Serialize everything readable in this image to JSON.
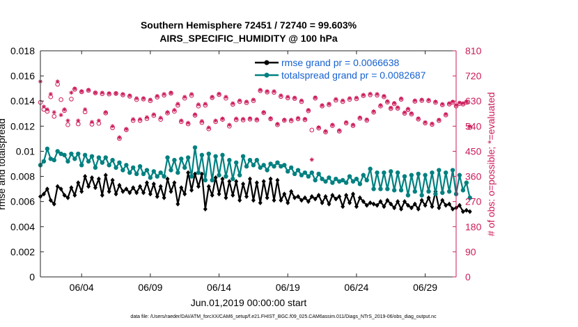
{
  "chart_data": {
    "type": "line",
    "title": "Southern Hemisphere 72451 / 72740 = 99.603%",
    "subtitle": "AIRS_SPECIFIC_HUMIDITY @ 100 hPa",
    "xlabel": "Jun.01,2019 00:00:00 start",
    "ylabel": "rmse and totalspread",
    "ylabel_right": "# of obs: o=possible; *=evaluated",
    "footnote": "data file: /Users/raeder/DAI/ATM_forcXX/CAM6_setup/f.e21.FHIST_BGC.f09_025.CAM6assim.011/Diags_NTrS_2019-06/obs_diag_output.nc",
    "xlim": [
      1,
      31.25
    ],
    "ylim": [
      0,
      0.018
    ],
    "ylim_right": [
      0,
      810
    ],
    "xtick_positions": [
      4,
      9,
      14,
      19,
      24,
      29
    ],
    "xtick_labels": [
      "06/04",
      "06/09",
      "06/14",
      "06/19",
      "06/24",
      "06/29"
    ],
    "ytick_labels": [
      "0",
      "0.002",
      "0.004",
      "0.006",
      "0.008",
      "0.01",
      "0.012",
      "0.014",
      "0.016",
      "0.018"
    ],
    "ytick_values": [
      0,
      0.002,
      0.004,
      0.006,
      0.008,
      0.01,
      0.012,
      0.014,
      0.016,
      0.018
    ],
    "ytick_right_labels": [
      "0",
      "90",
      "180",
      "270",
      "360",
      "450",
      "540",
      "630",
      "720",
      "810"
    ],
    "ytick_right_values": [
      0,
      90,
      180,
      270,
      360,
      450,
      540,
      630,
      720,
      810
    ],
    "legend": [
      "rmse grand pr = 0.0066638",
      "totalspread grand pr = 0.0082687"
    ],
    "series": [
      {
        "name": "rmse grand pr = 0.0066638",
        "color": "#000000",
        "axis": "left",
        "x_start": 1.0,
        "x_step": 0.25,
        "values": [
          0.0064,
          0.0066,
          0.007,
          0.0061,
          0.0058,
          0.0072,
          0.007,
          0.0065,
          0.0063,
          0.0071,
          0.0065,
          0.0075,
          0.0068,
          0.008,
          0.0072,
          0.0079,
          0.0071,
          0.0078,
          0.0065,
          0.0081,
          0.0068,
          0.0077,
          0.0066,
          0.0073,
          0.0068,
          0.007,
          0.0067,
          0.0071,
          0.0067,
          0.0072,
          0.0067,
          0.0075,
          0.0066,
          0.0074,
          0.0064,
          0.0072,
          0.0063,
          0.0078,
          0.0068,
          0.0075,
          0.0058,
          0.0071,
          0.0066,
          0.0083,
          0.0069,
          0.0082,
          0.0072,
          0.0082,
          0.0054,
          0.0072,
          0.0065,
          0.0079,
          0.0066,
          0.0078,
          0.0063,
          0.0076,
          0.0065,
          0.0076,
          0.0061,
          0.0074,
          0.0064,
          0.0078,
          0.0061,
          0.0075,
          0.0059,
          0.0076,
          0.0063,
          0.0078,
          0.0061,
          0.0077,
          0.0061,
          0.0066,
          0.0059,
          0.0068,
          0.0063,
          0.0064,
          0.0061,
          0.0063,
          0.006,
          0.0064,
          0.0062,
          0.0065,
          0.0059,
          0.0064,
          0.0058,
          0.0065,
          0.0062,
          0.0064,
          0.0056,
          0.0065,
          0.0059,
          0.0066,
          0.0056,
          0.0063,
          0.006,
          0.0057,
          0.0059,
          0.0058,
          0.0057,
          0.006,
          0.0056,
          0.0061,
          0.0058,
          0.0055,
          0.006,
          0.0054,
          0.006,
          0.0057,
          0.0055,
          0.0058,
          0.0054,
          0.0061,
          0.0057,
          0.0063,
          0.0056,
          0.0068,
          0.0055,
          0.0061,
          0.0057,
          0.0058,
          0.0054,
          0.0055,
          0.0057,
          0.0052,
          0.0053,
          0.0052
        ]
      },
      {
        "name": "totalspread grand pr = 0.0082687",
        "color": "#008080",
        "axis": "left",
        "x_start": 1.0,
        "x_step": 0.25,
        "values": [
          0.0089,
          0.0092,
          0.0102,
          0.0094,
          0.0093,
          0.01,
          0.0098,
          0.0097,
          0.0092,
          0.0098,
          0.0094,
          0.0098,
          0.0089,
          0.0097,
          0.0092,
          0.0096,
          0.0087,
          0.0095,
          0.0091,
          0.0095,
          0.0089,
          0.0093,
          0.0087,
          0.0091,
          0.0085,
          0.0089,
          0.0083,
          0.0087,
          0.0082,
          0.0088,
          0.0082,
          0.0085,
          0.0079,
          0.0084,
          0.008,
          0.0083,
          0.008,
          0.0095,
          0.0085,
          0.0093,
          0.0083,
          0.0094,
          0.0087,
          0.0095,
          0.008,
          0.0103,
          0.0083,
          0.0097,
          0.0077,
          0.0098,
          0.0077,
          0.0096,
          0.0081,
          0.0097,
          0.008,
          0.0093,
          0.0078,
          0.0091,
          0.0081,
          0.0096,
          0.0088,
          0.0093,
          0.0089,
          0.0093,
          0.0087,
          0.0089,
          0.0085,
          0.009,
          0.0088,
          0.0091,
          0.0088,
          0.0089,
          0.0084,
          0.0087,
          0.0082,
          0.0085,
          0.0081,
          0.0083,
          0.008,
          0.0083,
          0.0077,
          0.0082,
          0.0078,
          0.0076,
          0.0079,
          0.0075,
          0.0078,
          0.0076,
          0.0077,
          0.0075,
          0.008,
          0.0076,
          0.0078,
          0.0074,
          0.0081,
          0.0077,
          0.0086,
          0.007,
          0.0083,
          0.007,
          0.0083,
          0.007,
          0.0084,
          0.0069,
          0.0083,
          0.0069,
          0.008,
          0.0065,
          0.0081,
          0.0068,
          0.0082,
          0.0065,
          0.0081,
          0.0068,
          0.0083,
          0.0066,
          0.0085,
          0.0067,
          0.0083,
          0.0068,
          0.0085,
          0.0066,
          0.0081,
          0.0069,
          0.0075,
          0.0063
        ]
      },
      {
        "name": "# of obs possible",
        "color": "#cc1a5a",
        "axis": "right",
        "marker": "o",
        "x_start": 1.0,
        "x_step": 0.25,
        "values": [
          625,
          600,
          593,
          645,
          575,
          690,
          635,
          596,
          545,
          637,
          672,
          548,
          663,
          591,
          668,
          547,
          659,
          550,
          656,
          587,
          655,
          534,
          657,
          496,
          652,
          527,
          647,
          560,
          635,
          560,
          637,
          567,
          631,
          578,
          644,
          564,
          651,
          587,
          658,
          593,
          615,
          556,
          640,
          548,
          650,
          579,
          612,
          553,
          615,
          530,
          642,
          556,
          653,
          564,
          640,
          540,
          618,
          563,
          628,
          562,
          624,
          565,
          631,
          562,
          667,
          588,
          662,
          566,
          661,
          545,
          646,
          561,
          641,
          559,
          639,
          566,
          628,
          563,
          595,
          526,
          640,
          533,
          612,
          519,
          617,
          542,
          633,
          522,
          628,
          551,
          636,
          542,
          638,
          568,
          649,
          561,
          652,
          590,
          651,
          612,
          645,
          626,
          603,
          620,
          604,
          636,
          586,
          599,
          583,
          629,
          565,
          632,
          551,
          631,
          546,
          625,
          560,
          616,
          580,
          619,
          625,
          612,
          621,
          619,
          625,
          535
        ]
      },
      {
        "name": "# of obs evaluated",
        "color": "#cc1a5a",
        "axis": "right",
        "marker": "*",
        "x_start": 1.0,
        "x_step": 0.25,
        "values": [
          700,
          610,
          600,
          655,
          590,
          700,
          580,
          600,
          560,
          660,
          675,
          560,
          665,
          600,
          670,
          555,
          660,
          560,
          660,
          590,
          658,
          540,
          658,
          500,
          655,
          530,
          650,
          565,
          640,
          565,
          640,
          572,
          635,
          582,
          648,
          570,
          655,
          590,
          660,
          598,
          620,
          560,
          645,
          552,
          655,
          582,
          618,
          558,
          620,
          535,
          645,
          560,
          656,
          567,
          645,
          545,
          622,
          567,
          632,
          566,
          628,
          568,
          635,
          565,
          670,
          590,
          665,
          568,
          665,
          548,
          650,
          563,
          645,
          563,
          642,
          569,
          632,
          566,
          598,
          420,
          643,
          536,
          615,
          522,
          620,
          545,
          637,
          525,
          632,
          554,
          640,
          545,
          642,
          571,
          652,
          564,
          656,
          593,
          655,
          615,
          648,
          629,
          606,
          623,
          607,
          639,
          589,
          602,
          586,
          632,
          568,
          635,
          554,
          634,
          549,
          628,
          563,
          619,
          583,
          622,
          628,
          615,
          624,
          622,
          628,
          540
        ]
      }
    ]
  }
}
